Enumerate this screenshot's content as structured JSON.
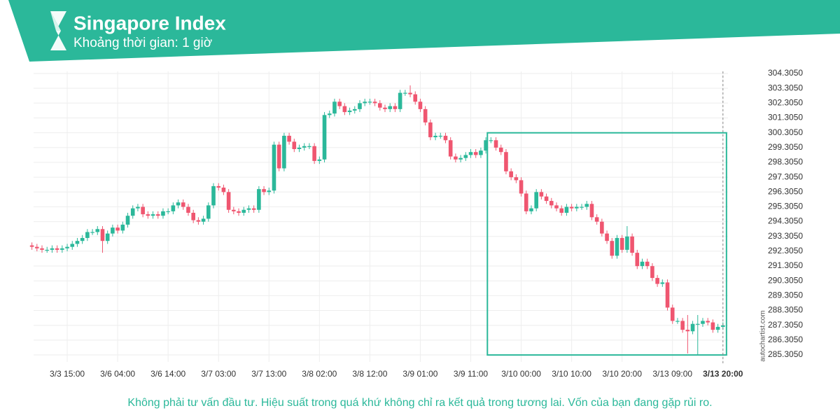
{
  "chart_data": {
    "type": "candlestick",
    "title": "Singapore Index",
    "subtitle": "Khoảng thời gian: 1 giờ",
    "footer": "Không phải tư vấn đầu tư. Hiệu suất trong quá khứ không chỉ ra kết quả trong tương lai. Vốn của bạn đang gặp rủi ro.",
    "watermark": "autochartist.com",
    "up_color": "#2bb89a",
    "down_color": "#ef5670",
    "box_color": "#2bb89a",
    "open": [
      292.7,
      292.6,
      292.5,
      292.4,
      292.4,
      292.5,
      292.4,
      292.5,
      292.6,
      292.8,
      293.0,
      293.2,
      293.6,
      293.6,
      293.8,
      293.0,
      293.5,
      293.9,
      293.7,
      294.1,
      294.7,
      295.2,
      295.3,
      294.8,
      294.7,
      294.8,
      294.7,
      295.0,
      295.0,
      295.4,
      295.6,
      295.3,
      294.9,
      294.4,
      294.3,
      294.5,
      295.4,
      296.7,
      296.6,
      296.3,
      295.1,
      295.0,
      294.9,
      295.1,
      295.2,
      295.1,
      296.5,
      296.3,
      296.4,
      299.5,
      297.9,
      300.1,
      299.7,
      299.2,
      299.3,
      299.4,
      299.4,
      298.4,
      298.5,
      301.5,
      301.6,
      302.4,
      302.1,
      301.7,
      301.8,
      301.9,
      302.3,
      302.4,
      302.4,
      302.3,
      302.0,
      301.9,
      302.1,
      301.9,
      303.0,
      303.0,
      302.9,
      302.4,
      301.9,
      301.0,
      300.0,
      300.1,
      300.1,
      299.8,
      298.7,
      298.5,
      298.6,
      298.8,
      299.0,
      298.8,
      299.1,
      299.8,
      299.8,
      299.3,
      299.0,
      297.7,
      297.3,
      297.1,
      296.2,
      295.0,
      295.2,
      296.3,
      296.0,
      295.7,
      295.4,
      295.2,
      294.9,
      295.3,
      295.2,
      295.3,
      295.3,
      295.5,
      294.6,
      294.3,
      293.5,
      293.0,
      292.0,
      293.2,
      292.4,
      293.3,
      292.2,
      291.3,
      291.6,
      291.3,
      290.5,
      290.1,
      290.2,
      288.5,
      287.6,
      287.6,
      287.0,
      286.9,
      287.4,
      287.4,
      287.6,
      287.5,
      287.0,
      287.2
    ],
    "high": [
      292.9,
      292.8,
      292.7,
      292.6,
      292.7,
      292.7,
      292.7,
      292.8,
      293.0,
      293.2,
      293.4,
      293.8,
      293.8,
      294.0,
      294.0,
      293.7,
      294.1,
      294.1,
      294.3,
      294.9,
      295.4,
      295.5,
      295.5,
      295.0,
      295.0,
      295.0,
      295.2,
      295.2,
      295.6,
      295.8,
      295.8,
      295.5,
      295.1,
      294.6,
      294.7,
      295.6,
      296.9,
      296.9,
      296.8,
      296.5,
      295.3,
      295.2,
      295.3,
      295.4,
      295.4,
      296.7,
      296.7,
      296.6,
      299.7,
      299.7,
      300.3,
      300.3,
      299.9,
      299.5,
      299.6,
      299.6,
      299.6,
      298.7,
      301.7,
      301.8,
      302.6,
      302.6,
      302.3,
      302.0,
      302.1,
      302.5,
      302.6,
      302.6,
      302.6,
      302.5,
      302.2,
      302.3,
      302.3,
      303.2,
      303.2,
      303.5,
      303.1,
      302.6,
      302.1,
      301.2,
      300.3,
      300.3,
      300.3,
      300.0,
      298.9,
      298.8,
      299.0,
      299.2,
      299.2,
      299.3,
      300.0,
      300.0,
      300.0,
      299.5,
      299.2,
      297.9,
      297.5,
      297.3,
      296.4,
      295.4,
      296.5,
      296.5,
      296.2,
      295.9,
      295.6,
      295.4,
      295.5,
      295.5,
      295.5,
      295.5,
      295.7,
      295.7,
      294.8,
      294.5,
      293.7,
      293.2,
      293.4,
      293.4,
      294.0,
      293.5,
      292.4,
      291.8,
      291.8,
      291.5,
      290.7,
      290.4,
      290.4,
      288.7,
      287.8,
      287.8,
      288.0,
      287.6,
      288.0,
      287.8,
      287.8,
      287.7,
      287.4,
      287.5
    ],
    "low": [
      292.4,
      292.3,
      292.2,
      292.2,
      292.2,
      292.2,
      292.2,
      292.3,
      292.4,
      292.6,
      292.8,
      293.0,
      293.4,
      293.4,
      292.2,
      292.8,
      293.3,
      293.5,
      293.5,
      293.9,
      294.5,
      295.0,
      294.6,
      294.5,
      294.5,
      294.5,
      294.5,
      294.8,
      294.8,
      295.2,
      295.1,
      294.7,
      294.2,
      294.1,
      294.1,
      294.3,
      295.2,
      296.4,
      296.1,
      294.9,
      294.8,
      294.7,
      294.7,
      294.9,
      294.9,
      294.9,
      296.1,
      296.1,
      296.2,
      297.7,
      297.7,
      299.5,
      299.0,
      299.0,
      299.1,
      299.2,
      298.2,
      298.2,
      298.3,
      301.3,
      301.4,
      301.9,
      301.5,
      301.5,
      301.6,
      301.7,
      302.1,
      302.2,
      302.1,
      301.8,
      301.7,
      301.7,
      301.7,
      301.7,
      302.8,
      302.7,
      302.2,
      301.7,
      300.8,
      299.8,
      299.8,
      299.9,
      299.6,
      298.5,
      298.3,
      298.3,
      298.4,
      298.6,
      298.6,
      298.6,
      298.9,
      299.6,
      299.1,
      298.8,
      297.5,
      297.1,
      296.9,
      296.0,
      294.8,
      294.8,
      295.0,
      295.8,
      295.5,
      295.2,
      295.0,
      294.7,
      294.7,
      295.0,
      295.0,
      295.1,
      295.1,
      294.4,
      294.1,
      293.3,
      292.8,
      291.8,
      291.8,
      292.2,
      292.2,
      292.0,
      291.1,
      291.1,
      291.1,
      290.3,
      289.9,
      289.9,
      288.3,
      287.4,
      287.4,
      286.8,
      285.4,
      286.7,
      285.3,
      287.2,
      287.3,
      286.8,
      286.8,
      287.0
    ],
    "close": [
      292.6,
      292.5,
      292.4,
      292.4,
      292.5,
      292.4,
      292.5,
      292.6,
      292.8,
      293.0,
      293.2,
      293.6,
      293.6,
      293.8,
      293.0,
      293.5,
      293.9,
      293.7,
      294.1,
      294.7,
      295.2,
      295.3,
      294.8,
      294.7,
      294.8,
      294.7,
      295.0,
      295.0,
      295.4,
      295.6,
      295.3,
      294.9,
      294.4,
      294.3,
      294.5,
      295.4,
      296.7,
      296.6,
      296.3,
      295.1,
      295.0,
      294.9,
      295.1,
      295.2,
      295.1,
      296.5,
      296.3,
      296.4,
      299.5,
      297.9,
      300.1,
      299.7,
      299.2,
      299.3,
      299.4,
      299.4,
      298.4,
      298.5,
      301.5,
      301.6,
      302.4,
      302.1,
      301.7,
      301.8,
      301.9,
      302.3,
      302.4,
      302.4,
      302.3,
      302.0,
      301.9,
      302.1,
      301.9,
      303.0,
      303.0,
      302.9,
      302.4,
      301.9,
      301.0,
      300.0,
      300.1,
      300.1,
      299.8,
      298.7,
      298.5,
      298.6,
      298.8,
      299.0,
      298.8,
      299.1,
      299.8,
      299.8,
      299.3,
      299.0,
      297.7,
      297.3,
      297.1,
      296.2,
      295.0,
      295.2,
      296.3,
      296.0,
      295.7,
      295.4,
      295.2,
      294.9,
      295.3,
      295.2,
      295.3,
      295.3,
      295.5,
      294.6,
      294.3,
      293.5,
      293.0,
      292.0,
      293.2,
      292.4,
      293.3,
      292.2,
      291.3,
      291.6,
      291.3,
      290.5,
      290.1,
      290.2,
      288.5,
      287.6,
      287.6,
      287.0,
      286.9,
      287.4,
      287.4,
      287.6,
      287.5,
      287.0,
      287.2,
      287.3
    ],
    "xlim": [
      -0.5,
      138
    ],
    "xticks": [
      {
        "value": 7,
        "label": "3/3 15:00"
      },
      {
        "value": 17,
        "label": "3/6 04:00"
      },
      {
        "value": 27,
        "label": "3/6 14:00"
      },
      {
        "value": 37,
        "label": "3/7 03:00"
      },
      {
        "value": 47,
        "label": "3/7 13:00"
      },
      {
        "value": 57,
        "label": "3/8 02:00"
      },
      {
        "value": 67,
        "label": "3/8 12:00"
      },
      {
        "value": 77,
        "label": "3/9 01:00"
      },
      {
        "value": 87,
        "label": "3/9 11:00"
      },
      {
        "value": 97,
        "label": "3/10 00:00"
      },
      {
        "value": 107,
        "label": "3/10 10:00"
      },
      {
        "value": 117,
        "label": "3/10 20:00"
      },
      {
        "value": 127,
        "label": "3/13 09:00"
      },
      {
        "value": 137,
        "label": "3/13 20:00"
      }
    ],
    "ylim": [
      284.8,
      304.8
    ],
    "yticks": [
      {
        "value": 285.305,
        "label": "285.3050"
      },
      {
        "value": 286.305,
        "label": "286.3050"
      },
      {
        "value": 287.305,
        "label": "287.3050"
      },
      {
        "value": 288.305,
        "label": "288.3050"
      },
      {
        "value": 289.305,
        "label": "289.3050"
      },
      {
        "value": 290.305,
        "label": "290.3050"
      },
      {
        "value": 291.305,
        "label": "291.3050"
      },
      {
        "value": 292.305,
        "label": "292.3050"
      },
      {
        "value": 293.305,
        "label": "293.3050"
      },
      {
        "value": 294.305,
        "label": "294.3050"
      },
      {
        "value": 295.305,
        "label": "295.3050"
      },
      {
        "value": 296.305,
        "label": "296.3050"
      },
      {
        "value": 297.305,
        "label": "297.3050"
      },
      {
        "value": 298.305,
        "label": "298.3050"
      },
      {
        "value": 299.305,
        "label": "299.3050"
      },
      {
        "value": 300.305,
        "label": "300.3050"
      },
      {
        "value": 301.305,
        "label": "301.3050"
      },
      {
        "value": 302.305,
        "label": "302.3050"
      },
      {
        "value": 303.305,
        "label": "303.3050"
      },
      {
        "value": 304.305,
        "label": "304.3050"
      }
    ],
    "grid": true,
    "highlight_box": {
      "x": [
        90.3,
        137.7
      ],
      "y": [
        285.3,
        300.3
      ]
    },
    "cursor_x": 137
  }
}
